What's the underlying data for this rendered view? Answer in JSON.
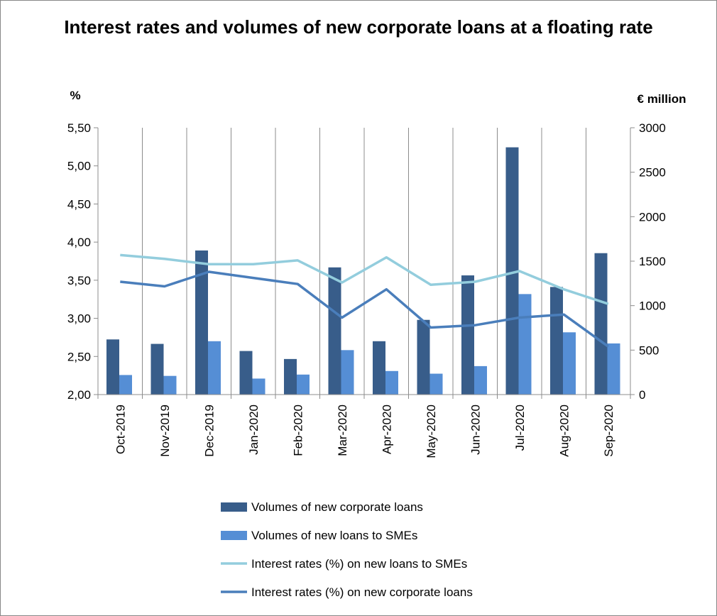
{
  "chart_data": {
    "type": "bar",
    "title": "Interest rates and volumes of new corporate loans at a floating rate",
    "y_left_label": "%",
    "y_right_label": "€ million",
    "y_left_range": [
      2.0,
      5.5
    ],
    "y_right_range": [
      0,
      3000
    ],
    "y_left_ticks": [
      "2,00",
      "2,50",
      "3,00",
      "3,50",
      "4,00",
      "4,50",
      "5,00",
      "5,50"
    ],
    "y_right_ticks": [
      "0",
      "500",
      "1000",
      "1500",
      "2000",
      "2500",
      "3000"
    ],
    "categories": [
      "Oct-2019",
      "Nov-2019",
      "Dec-2019",
      "Jan-2020",
      "Feb-2020",
      "Mar-2020",
      "Apr-2020",
      "May-2020",
      "Jun-2020",
      "Jul-2020",
      "Aug-2020",
      "Sep-2020"
    ],
    "grid": "vertical",
    "legend_position": "bottom",
    "series": [
      {
        "name": "Volumes of new corporate loans",
        "kind": "bar",
        "axis": "right",
        "color": "#385d8a",
        "values": [
          620,
          570,
          1620,
          490,
          400,
          1430,
          600,
          840,
          1340,
          2780,
          1210,
          1590
        ]
      },
      {
        "name": "Volumes of new loans to SMEs",
        "kind": "bar",
        "axis": "right",
        "color": "#558ed5",
        "values": [
          220,
          210,
          600,
          180,
          225,
          500,
          265,
          235,
          320,
          1130,
          700,
          575
        ]
      },
      {
        "name": "Interest rates (%) on new loans to SMEs",
        "kind": "line",
        "axis": "left",
        "color": "#93cddd",
        "values": [
          3.83,
          3.78,
          3.71,
          3.71,
          3.76,
          3.47,
          3.8,
          3.44,
          3.48,
          3.62,
          3.38,
          3.19
        ]
      },
      {
        "name": "Interest rates (%) on new corporate loans",
        "kind": "line",
        "axis": "left",
        "color": "#4a7ebb",
        "values": [
          3.48,
          3.42,
          3.61,
          3.53,
          3.45,
          3.01,
          3.38,
          2.88,
          2.91,
          3.01,
          3.05,
          2.63
        ]
      }
    ]
  }
}
